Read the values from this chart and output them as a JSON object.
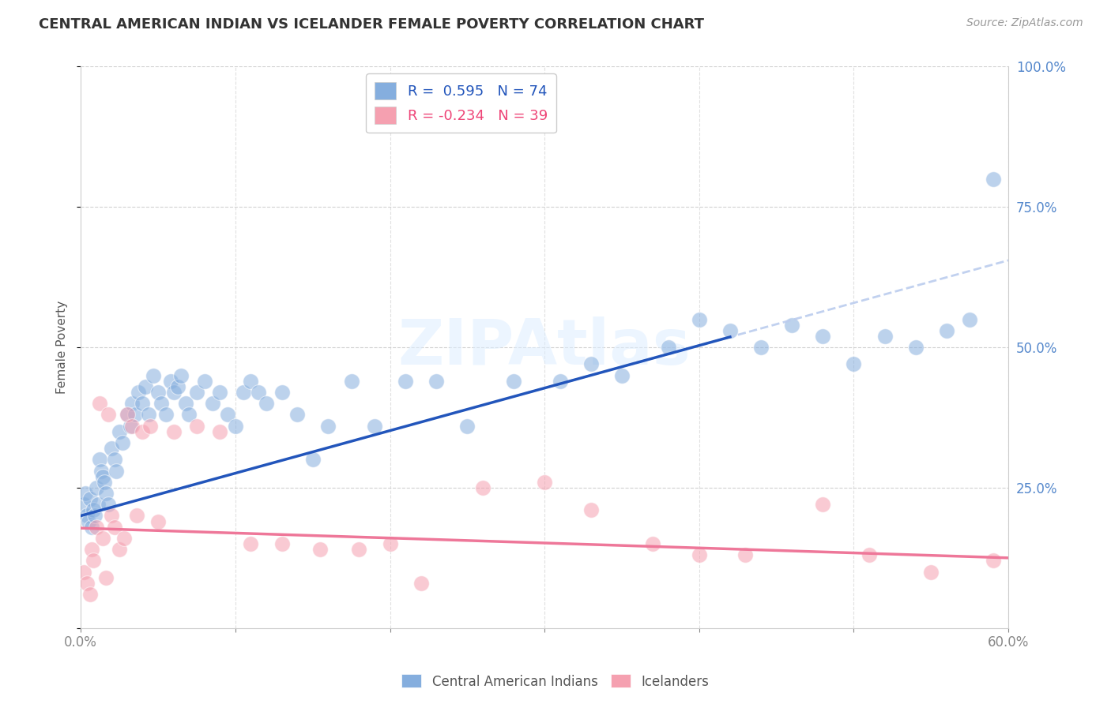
{
  "title": "CENTRAL AMERICAN INDIAN VS ICELANDER FEMALE POVERTY CORRELATION CHART",
  "source": "Source: ZipAtlas.com",
  "ylabel": "Female Poverty",
  "xlim": [
    0.0,
    0.6
  ],
  "ylim": [
    0.0,
    1.0
  ],
  "xticks": [
    0.0,
    0.1,
    0.2,
    0.3,
    0.4,
    0.5,
    0.6
  ],
  "xticklabels": [
    "0.0%",
    "",
    "",
    "",
    "",
    "",
    "60.0%"
  ],
  "yticks": [
    0.0,
    0.25,
    0.5,
    0.75,
    1.0
  ],
  "yticklabels_right": [
    "",
    "25.0%",
    "50.0%",
    "75.0%",
    "100.0%"
  ],
  "legend_r1": "R =  0.595",
  "legend_n1": "N = 74",
  "legend_r2": "R = -0.234",
  "legend_n2": "N = 39",
  "color_blue": "#85AEDE",
  "color_pink": "#F5A0B0",
  "color_blue_line": "#2255BB",
  "color_pink_line": "#EE7799",
  "color_dashed": "#BBCCEE",
  "watermark": "ZIPAtlas",
  "blue_line_x0": 0.0,
  "blue_line_y0": 0.2,
  "blue_line_x1": 0.6,
  "blue_line_y1": 0.655,
  "blue_line_solid_x1": 0.42,
  "blue_line_solid_y1": 0.52,
  "pink_line_x0": 0.0,
  "pink_line_y0": 0.178,
  "pink_line_x1": 0.6,
  "pink_line_y1": 0.125,
  "blue_x": [
    0.002,
    0.003,
    0.004,
    0.005,
    0.006,
    0.007,
    0.008,
    0.009,
    0.01,
    0.011,
    0.012,
    0.013,
    0.014,
    0.015,
    0.016,
    0.018,
    0.02,
    0.022,
    0.023,
    0.025,
    0.027,
    0.03,
    0.032,
    0.033,
    0.035,
    0.037,
    0.04,
    0.042,
    0.044,
    0.047,
    0.05,
    0.052,
    0.055,
    0.058,
    0.06,
    0.063,
    0.065,
    0.068,
    0.07,
    0.075,
    0.08,
    0.085,
    0.09,
    0.095,
    0.1,
    0.105,
    0.11,
    0.115,
    0.12,
    0.13,
    0.14,
    0.15,
    0.16,
    0.175,
    0.19,
    0.21,
    0.23,
    0.25,
    0.28,
    0.31,
    0.33,
    0.35,
    0.38,
    0.4,
    0.42,
    0.44,
    0.46,
    0.48,
    0.5,
    0.52,
    0.54,
    0.56,
    0.575,
    0.59
  ],
  "blue_y": [
    0.22,
    0.24,
    0.2,
    0.19,
    0.23,
    0.18,
    0.21,
    0.2,
    0.25,
    0.22,
    0.3,
    0.28,
    0.27,
    0.26,
    0.24,
    0.22,
    0.32,
    0.3,
    0.28,
    0.35,
    0.33,
    0.38,
    0.36,
    0.4,
    0.38,
    0.42,
    0.4,
    0.43,
    0.38,
    0.45,
    0.42,
    0.4,
    0.38,
    0.44,
    0.42,
    0.43,
    0.45,
    0.4,
    0.38,
    0.42,
    0.44,
    0.4,
    0.42,
    0.38,
    0.36,
    0.42,
    0.44,
    0.42,
    0.4,
    0.42,
    0.38,
    0.3,
    0.36,
    0.44,
    0.36,
    0.44,
    0.44,
    0.36,
    0.44,
    0.44,
    0.47,
    0.45,
    0.5,
    0.55,
    0.53,
    0.5,
    0.54,
    0.52,
    0.47,
    0.52,
    0.5,
    0.53,
    0.55,
    0.8
  ],
  "pink_x": [
    0.002,
    0.004,
    0.006,
    0.007,
    0.008,
    0.01,
    0.012,
    0.014,
    0.016,
    0.018,
    0.02,
    0.022,
    0.025,
    0.028,
    0.03,
    0.033,
    0.036,
    0.04,
    0.045,
    0.05,
    0.06,
    0.075,
    0.09,
    0.11,
    0.13,
    0.155,
    0.18,
    0.2,
    0.22,
    0.26,
    0.3,
    0.33,
    0.37,
    0.4,
    0.43,
    0.48,
    0.51,
    0.55,
    0.59
  ],
  "pink_y": [
    0.1,
    0.08,
    0.06,
    0.14,
    0.12,
    0.18,
    0.4,
    0.16,
    0.09,
    0.38,
    0.2,
    0.18,
    0.14,
    0.16,
    0.38,
    0.36,
    0.2,
    0.35,
    0.36,
    0.19,
    0.35,
    0.36,
    0.35,
    0.15,
    0.15,
    0.14,
    0.14,
    0.15,
    0.08,
    0.25,
    0.26,
    0.21,
    0.15,
    0.13,
    0.13,
    0.22,
    0.13,
    0.1,
    0.12
  ]
}
